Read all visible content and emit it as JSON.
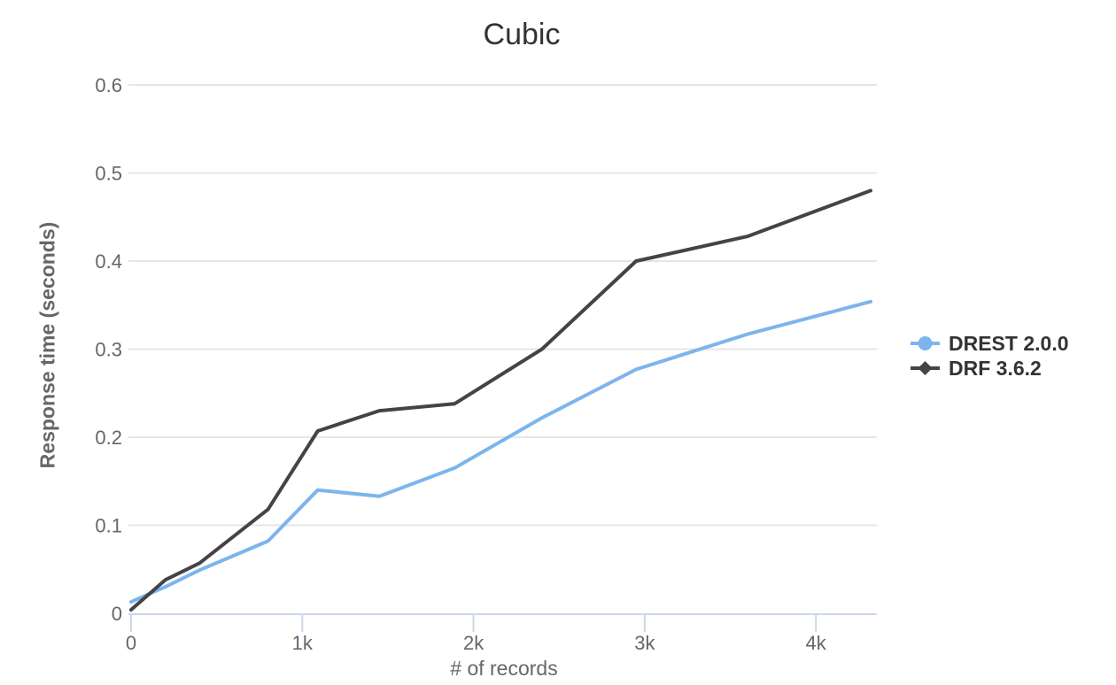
{
  "chart_data": {
    "type": "line",
    "title": "Cubic",
    "xlabel": "# of records",
    "ylabel": "Response time (seconds)",
    "xlim": [
      0,
      4356
    ],
    "ylim": [
      0,
      0.6
    ],
    "grid": "horizontal-only",
    "legend_position": "right-middle",
    "x_ticks": [
      {
        "value": 0,
        "label": "0"
      },
      {
        "value": 1000,
        "label": "1k"
      },
      {
        "value": 2000,
        "label": "2k"
      },
      {
        "value": 3000,
        "label": "3k"
      },
      {
        "value": 4000,
        "label": "4k"
      }
    ],
    "y_ticks": [
      {
        "value": 0,
        "label": "0"
      },
      {
        "value": 0.1,
        "label": "0.1"
      },
      {
        "value": 0.2,
        "label": "0.2"
      },
      {
        "value": 0.3,
        "label": "0.3"
      },
      {
        "value": 0.4,
        "label": "0.4"
      },
      {
        "value": 0.5,
        "label": "0.5"
      },
      {
        "value": 0.6,
        "label": "0.6"
      }
    ],
    "x": [
      0,
      200,
      400,
      800,
      1090,
      1450,
      1890,
      2400,
      2950,
      3600,
      4320
    ],
    "series": [
      {
        "name": "DREST 2.0.0",
        "color": "#7cb5ec",
        "marker": "circle",
        "values": [
          0.013,
          0.03,
          0.049,
          0.082,
          0.14,
          0.133,
          0.165,
          0.222,
          0.277,
          0.317,
          0.354
        ]
      },
      {
        "name": "DRF 3.6.2",
        "color": "#434348",
        "marker": "diamond",
        "values": [
          0.004,
          0.038,
          0.057,
          0.118,
          0.207,
          0.23,
          0.238,
          0.3,
          0.4,
          0.428,
          0.48
        ]
      }
    ],
    "colors": {
      "grid_line": "#e6e6e6",
      "x_axis_line": "#ccd6eb",
      "tick_label": "#666666",
      "axis_title": "#666666",
      "chart_title": "#333333",
      "legend_text": "#333333",
      "background": "#ffffff"
    }
  }
}
